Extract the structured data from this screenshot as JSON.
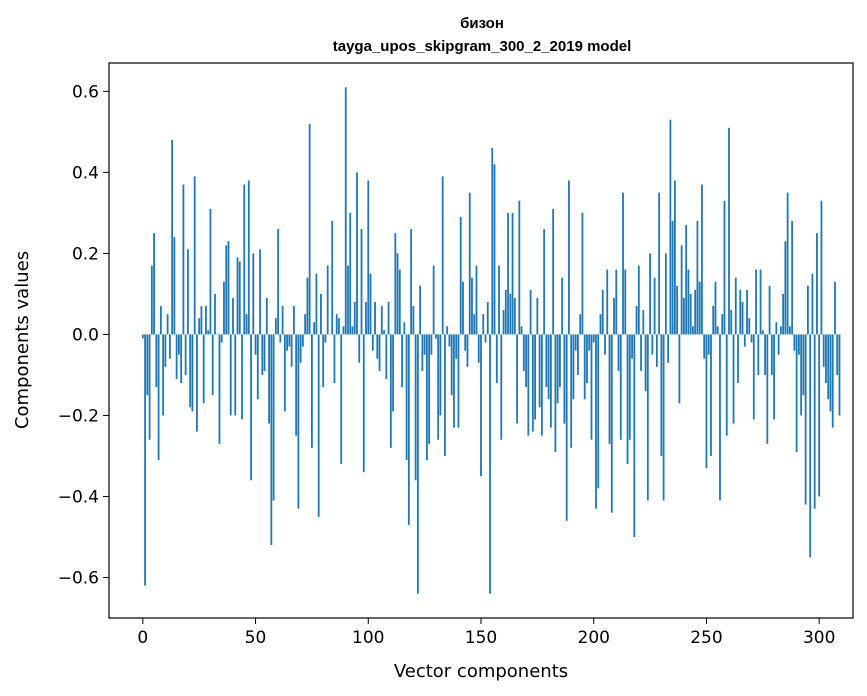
{
  "chart_data": {
    "type": "bar",
    "title": "бизон",
    "subtitle": "tayga_upos_skipgram_300_2_2019 model",
    "xlabel": "Vector components",
    "ylabel": "Components values",
    "xlim": [
      -15,
      315
    ],
    "ylim": [
      -0.7,
      0.67
    ],
    "xticks": [
      0,
      50,
      100,
      150,
      200,
      250,
      300
    ],
    "xtick_labels": [
      "0",
      "50",
      "100",
      "150",
      "200",
      "250",
      "300"
    ],
    "yticks": [
      -0.6,
      -0.4,
      -0.2,
      0.0,
      0.2,
      0.4,
      0.6
    ],
    "ytick_labels": [
      "−0.6",
      "−0.4",
      "−0.2",
      "0.0",
      "0.2",
      "0.4",
      "0.6"
    ],
    "grid": false,
    "bar_color": "#1f77b4",
    "values": [
      -0.01,
      -0.62,
      -0.15,
      -0.26,
      0.17,
      0.25,
      -0.13,
      -0.31,
      0.07,
      -0.2,
      -0.08,
      0.05,
      -0.06,
      0.48,
      0.24,
      -0.11,
      -0.05,
      -0.12,
      0.37,
      -0.1,
      0.21,
      -0.18,
      -0.19,
      0.39,
      -0.24,
      0.04,
      0.07,
      -0.17,
      0.07,
      0.01,
      0.31,
      -0.15,
      0.1,
      0.0,
      -0.27,
      -0.02,
      0.13,
      0.22,
      0.23,
      -0.2,
      0.09,
      -0.2,
      0.19,
      0.18,
      -0.21,
      0.37,
      0.05,
      0.38,
      -0.36,
      0.2,
      -0.05,
      -0.16,
      0.21,
      -0.1,
      -0.09,
      0.09,
      -0.22,
      -0.52,
      -0.41,
      0.04,
      0.26,
      -0.02,
      0.07,
      -0.19,
      -0.04,
      -0.03,
      -0.08,
      0.07,
      -0.25,
      -0.43,
      -0.07,
      -0.03,
      0.05,
      0.14,
      0.52,
      -0.28,
      0.03,
      0.15,
      -0.45,
      0.1,
      -0.13,
      -0.02,
      0.17,
      0.0,
      0.28,
      -0.12,
      0.05,
      0.04,
      -0.32,
      0.02,
      0.61,
      0.17,
      0.3,
      0.02,
      0.08,
      0.4,
      -0.07,
      0.26,
      -0.34,
      0.08,
      0.38,
      0.15,
      -0.04,
      0.08,
      -0.06,
      -0.09,
      0.07,
      0.01,
      -0.11,
      0.08,
      -0.28,
      -0.19,
      0.25,
      0.2,
      0.16,
      -0.13,
      0.03,
      -0.31,
      -0.47,
      0.26,
      0.07,
      -0.36,
      -0.64,
      0.12,
      -0.09,
      -0.05,
      -0.31,
      -0.27,
      -0.05,
      0.17,
      -0.01,
      -0.26,
      -0.2,
      0.39,
      -0.3,
      0.02,
      -0.03,
      -0.15,
      -0.23,
      -0.06,
      -0.23,
      0.29,
      0.13,
      -0.04,
      -0.08,
      0.35,
      0.14,
      0.05,
      0.17,
      -0.07,
      -0.35,
      0.05,
      -0.02,
      0.08,
      -0.64,
      0.46,
      0.42,
      -0.12,
      0.17,
      -0.26,
      0.06,
      0.11,
      0.3,
      0.1,
      0.3,
      0.09,
      -0.22,
      0.33,
      0.02,
      -0.09,
      -0.13,
      -0.25,
      0.11,
      -0.24,
      -0.21,
      0.09,
      -0.18,
      -0.25,
      0.26,
      -0.13,
      -0.16,
      -0.23,
      0.31,
      -0.29,
      -0.17,
      -0.13,
      0.14,
      -0.22,
      -0.46,
      0.38,
      -0.28,
      -0.16,
      -0.04,
      -0.1,
      0.05,
      0.3,
      -0.16,
      -0.12,
      -0.04,
      -0.26,
      -0.02,
      -0.43,
      -0.38,
      0.05,
      0.11,
      -0.05,
      0.16,
      -0.27,
      -0.44,
      0.09,
      0.16,
      -0.09,
      -0.26,
      0.35,
      0.16,
      -0.32,
      -0.26,
      -0.06,
      -0.5,
      0.07,
      0.17,
      -0.09,
      0.06,
      -0.14,
      -0.41,
      0.2,
      -0.05,
      0.14,
      -0.08,
      0.35,
      -0.3,
      -0.41,
      0.2,
      -0.07,
      0.53,
      0.28,
      0.38,
      0.12,
      -0.17,
      0.22,
      0.09,
      0.27,
      0.16,
      0.1,
      0.02,
      0.11,
      0.28,
      0.13,
      0.37,
      -0.06,
      -0.33,
      -0.05,
      -0.3,
      0.07,
      0.13,
      0.02,
      -0.41,
      0.05,
      0.33,
      -0.25,
      0.51,
      0.06,
      -0.22,
      0.14,
      -0.12,
      0.11,
      0.08,
      -0.03,
      0.11,
      0.04,
      -0.02,
      -0.21,
      0.16,
      -0.1,
      0.16,
      0.01,
      -0.1,
      -0.27,
      0.12,
      -0.1,
      -0.21,
      0.03,
      -0.05,
      0.02,
      0.1,
      0.23,
      0.35,
      0.02,
      0.28,
      -0.04,
      -0.29,
      -0.05,
      -0.2,
      -0.15,
      -0.42,
      0.12,
      -0.55,
      0.15,
      -0.43,
      0.25,
      -0.4,
      0.33,
      -0.08,
      -0.12,
      -0.16,
      -0.19,
      -0.23,
      0.13,
      -0.1,
      -0.2
    ]
  }
}
